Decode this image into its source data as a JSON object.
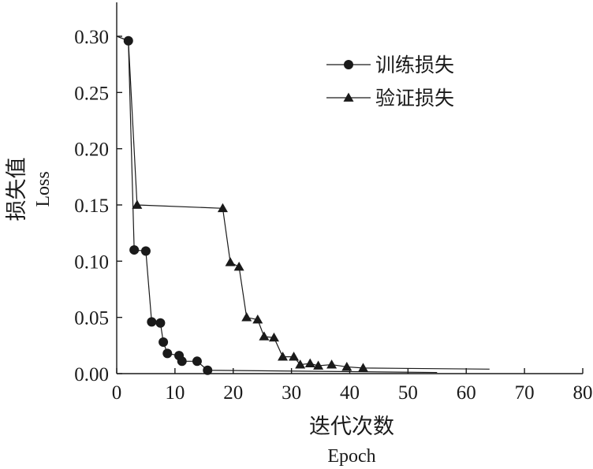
{
  "chart_data": {
    "type": "line",
    "xlabel": "迭代次数",
    "xlabel_en": "Epoch",
    "ylabel": "损失值",
    "ylabel_en": "Loss",
    "xlim": [
      0,
      80
    ],
    "ylim": [
      0,
      0.32
    ],
    "xticks": [
      0,
      10,
      20,
      30,
      40,
      50,
      60,
      70,
      80
    ],
    "yticks": [
      0.0,
      0.05,
      0.1,
      0.15,
      0.2,
      0.25,
      0.3
    ],
    "ytick_labels": [
      "0.00",
      "0.05",
      "0.10",
      "0.15",
      "0.20",
      "0.25",
      "0.30"
    ],
    "grid": false,
    "legend": "top-right",
    "series": [
      {
        "name": "训练损失",
        "marker": "circle",
        "color": "#1a1a1a",
        "x": [
          0,
          2,
          3,
          5,
          6,
          7.5,
          8,
          8.7,
          10.7,
          11.2,
          13.8,
          15.6,
          55
        ],
        "y": [
          0.3,
          0.296,
          0.11,
          0.109,
          0.046,
          0.045,
          0.028,
          0.018,
          0.016,
          0.011,
          0.011,
          0.003,
          0.001
        ],
        "marked": [
          false,
          true,
          true,
          true,
          true,
          true,
          true,
          true,
          true,
          true,
          true,
          true,
          false
        ]
      },
      {
        "name": "验证损失",
        "marker": "triangle",
        "color": "#1a1a1a",
        "x": [
          0,
          2,
          3.5,
          18.2,
          19.5,
          21,
          22.3,
          24.2,
          25.3,
          27,
          28.5,
          30.4,
          31.5,
          33.2,
          34.6,
          36.9,
          39.5,
          42.3,
          64
        ],
        "y": [
          0.3,
          0.296,
          0.15,
          0.147,
          0.099,
          0.095,
          0.05,
          0.048,
          0.033,
          0.032,
          0.015,
          0.015,
          0.008,
          0.009,
          0.007,
          0.008,
          0.006,
          0.005,
          0.004
        ],
        "marked": [
          false,
          false,
          true,
          true,
          true,
          true,
          true,
          true,
          true,
          true,
          true,
          true,
          true,
          true,
          true,
          true,
          true,
          true,
          false
        ]
      }
    ]
  }
}
